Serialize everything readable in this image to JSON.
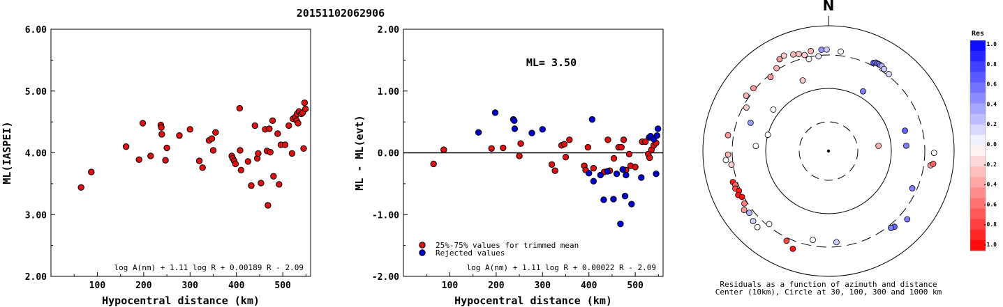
{
  "event_id": "20151102062906",
  "chart_data": [
    {
      "type": "scatter",
      "xlabel": "Hypocentral distance (km)",
      "ylabel": "ML(IASPEI)",
      "xlim": [
        0,
        560
      ],
      "ylim": [
        2.0,
        6.0
      ],
      "xticks": [
        100,
        200,
        300,
        400,
        500
      ],
      "yticks": [
        2.0,
        3.0,
        4.0,
        5.0,
        6.0
      ],
      "ytick_labels": [
        "2.00",
        "3.00",
        "4.00",
        "5.00",
        "6.00"
      ],
      "formula": "log A(nm) + 1.11 log R + 0.00189 R - 2.09",
      "series": [
        {
          "color": "#dd1111",
          "points": [
            [
              65,
              3.44
            ],
            [
              87,
              3.69
            ],
            [
              162,
              4.1
            ],
            [
              190,
              3.89
            ],
            [
              198,
              4.48
            ],
            [
              215,
              3.95
            ],
            [
              237,
              4.45
            ],
            [
              238,
              4.41
            ],
            [
              239,
              4.3
            ],
            [
              247,
              3.88
            ],
            [
              250,
              4.08
            ],
            [
              277,
              4.28
            ],
            [
              300,
              4.38
            ],
            [
              320,
              3.87
            ],
            [
              327,
              3.76
            ],
            [
              341,
              4.2
            ],
            [
              347,
              4.23
            ],
            [
              350,
              4.04
            ],
            [
              355,
              4.33
            ],
            [
              390,
              3.95
            ],
            [
              392,
              3.91
            ],
            [
              395,
              3.87
            ],
            [
              398,
              3.82
            ],
            [
              407,
              4.72
            ],
            [
              408,
              4.04
            ],
            [
              410,
              3.72
            ],
            [
              425,
              3.86
            ],
            [
              432,
              3.47
            ],
            [
              440,
              4.44
            ],
            [
              445,
              3.91
            ],
            [
              447,
              3.99
            ],
            [
              453,
              3.51
            ],
            [
              462,
              4.38
            ],
            [
              466,
              4.03
            ],
            [
              468,
              3.15
            ],
            [
              471,
              4.39
            ],
            [
              473,
              4.01
            ],
            [
              478,
              4.52
            ],
            [
              480,
              3.62
            ],
            [
              489,
              4.31
            ],
            [
              492,
              3.49
            ],
            [
              496,
              4.13
            ],
            [
              505,
              4.13
            ],
            [
              513,
              4.44
            ],
            [
              520,
              3.99
            ],
            [
              522,
              4.55
            ],
            [
              527,
              4.58
            ],
            [
              530,
              4.52
            ],
            [
              531,
              4.63
            ],
            [
              533,
              4.48
            ],
            [
              535,
              4.67
            ],
            [
              540,
              4.63
            ],
            [
              543,
              4.65
            ],
            [
              545,
              4.07
            ],
            [
              547,
              4.81
            ],
            [
              549,
              4.71
            ]
          ]
        }
      ]
    },
    {
      "type": "scatter",
      "xlabel": "Hypocentral distance (km)",
      "ylabel": "ML - ML(evt)",
      "xlim": [
        0,
        560
      ],
      "ylim": [
        -2.0,
        2.0
      ],
      "xticks": [
        100,
        200,
        300,
        400,
        500
      ],
      "yticks": [
        -2.0,
        -1.0,
        0.0,
        1.0,
        2.0
      ],
      "ytick_labels": [
        "-2.00",
        "-1.00",
        "0.00",
        "1.00",
        "2.00"
      ],
      "ml_label": "ML= 3.50",
      "formula": "log A(nm) + 1.11 log R + 0.00022 R - 2.09",
      "legend": [
        "25%-75% values for trimmed mean",
        "Rejected values"
      ],
      "series": [
        {
          "name": "25%-75% values for trimmed mean",
          "color": "#dd1111",
          "points": [
            [
              65,
              -0.18
            ],
            [
              87,
              0.05
            ],
            [
              190,
              0.07
            ],
            [
              215,
              0.08
            ],
            [
              250,
              -0.05
            ],
            [
              253,
              0.15
            ],
            [
              320,
              -0.19
            ],
            [
              327,
              -0.29
            ],
            [
              341,
              0.12
            ],
            [
              347,
              0.14
            ],
            [
              350,
              -0.07
            ],
            [
              358,
              0.21
            ],
            [
              390,
              -0.21
            ],
            [
              393,
              -0.28
            ],
            [
              398,
              0.09
            ],
            [
              410,
              -0.25
            ],
            [
              433,
              -0.31
            ],
            [
              441,
              0.21
            ],
            [
              445,
              -0.29
            ],
            [
              454,
              -0.09
            ],
            [
              464,
              0.09
            ],
            [
              470,
              0.09
            ],
            [
              475,
              0.21
            ],
            [
              480,
              -0.28
            ],
            [
              487,
              -0.02
            ],
            [
              490,
              -0.21
            ],
            [
              500,
              -0.23
            ],
            [
              515,
              0.18
            ],
            [
              522,
              0.18
            ],
            [
              528,
              -0.02
            ],
            [
              531,
              -0.08
            ],
            [
              535,
              0.05
            ],
            [
              540,
              0.12
            ],
            [
              545,
              0.16
            ]
          ]
        },
        {
          "name": "Rejected values",
          "color": "#0000cc",
          "points": [
            [
              162,
              0.33
            ],
            [
              198,
              0.65
            ],
            [
              237,
              0.54
            ],
            [
              239,
              0.52
            ],
            [
              240,
              0.39
            ],
            [
              277,
              0.32
            ],
            [
              300,
              0.38
            ],
            [
              400,
              -0.33
            ],
            [
              407,
              0.54
            ],
            [
              410,
              -0.46
            ],
            [
              425,
              -0.36
            ],
            [
              432,
              -0.76
            ],
            [
              440,
              -0.3
            ],
            [
              453,
              -0.75
            ],
            [
              460,
              -0.34
            ],
            [
              468,
              -1.15
            ],
            [
              473,
              -0.27
            ],
            [
              478,
              -0.7
            ],
            [
              480,
              -0.36
            ],
            [
              492,
              -0.83
            ],
            [
              513,
              -0.4
            ],
            [
              530,
              0.25
            ],
            [
              533,
              0.27
            ],
            [
              540,
              0.22
            ],
            [
              545,
              -0.34
            ],
            [
              547,
              0.28
            ],
            [
              549,
              0.39
            ]
          ]
        }
      ]
    },
    {
      "type": "polar-scatter",
      "north_label": "N",
      "caption": [
        "Residuals as a function of azimuth and distance",
        "Center (10km), Circle at 30, 100, 300 and 1000 km"
      ],
      "colorbar_title": "Res",
      "colorbar_ticks": [
        "1.0",
        "0.8",
        "0.6",
        "0.4",
        "0.2",
        "0.0",
        "-0.2",
        "-0.4",
        "-0.6",
        "-0.8",
        "-1.0"
      ],
      "stations": [
        {
          "az": -32,
          "r": 0.78,
          "res": -0.3
        },
        {
          "az": -28,
          "r": 0.83,
          "res": -0.4
        },
        {
          "az": -25,
          "r": 0.84,
          "res": -0.2
        },
        {
          "az": -20,
          "r": 0.82,
          "res": -0.3
        },
        {
          "az": -17,
          "r": 0.81,
          "res": -0.25
        },
        {
          "az": -14,
          "r": 0.79,
          "res": -0.2
        },
        {
          "az": -10,
          "r": 0.81,
          "res": -0.3
        },
        {
          "az": -12,
          "r": 0.75,
          "res": 0.0
        },
        {
          "az": -6,
          "r": 0.76,
          "res": 0.1
        },
        {
          "az": -4,
          "r": 0.81,
          "res": 0.4
        },
        {
          "az": -1,
          "r": 0.81,
          "res": 0.2
        },
        {
          "az": 7,
          "r": 0.8,
          "res": 0.0
        },
        {
          "az": 27,
          "r": 0.79,
          "res": 0.6
        },
        {
          "az": 28,
          "r": 0.8,
          "res": 0.5
        },
        {
          "az": 29,
          "r": 0.8,
          "res": 0.6
        },
        {
          "az": 30,
          "r": 0.8,
          "res": 0.4
        },
        {
          "az": 31,
          "r": 0.8,
          "res": 0.5
        },
        {
          "az": 32,
          "r": 0.8,
          "res": 0.3
        },
        {
          "az": 34,
          "r": 0.79,
          "res": 0.2
        },
        {
          "az": 38,
          "r": 0.78,
          "res": 0.15
        },
        {
          "az": 30,
          "r": 0.55,
          "res": 0.5
        },
        {
          "az": -20,
          "r": 0.6,
          "res": -0.2
        },
        {
          "az": -38,
          "r": 0.75,
          "res": -0.4
        },
        {
          "az": -50,
          "r": 0.78,
          "res": -0.4
        },
        {
          "az": -56,
          "r": 0.79,
          "res": -0.3
        },
        {
          "az": -62,
          "r": 0.74,
          "res": -0.2
        },
        {
          "az": -53,
          "r": 0.55,
          "res": 0.0
        },
        {
          "az": -70,
          "r": 0.66,
          "res": 0.4
        },
        {
          "az": -81,
          "r": 0.81,
          "res": -0.4
        },
        {
          "az": -86,
          "r": 0.58,
          "res": 0.0
        },
        {
          "az": -92,
          "r": 0.8,
          "res": -0.3
        },
        {
          "az": -98,
          "r": 0.78,
          "res": -0.2
        },
        {
          "az": -95,
          "r": 0.82,
          "res": 0.0
        },
        {
          "az": -108,
          "r": 0.8,
          "res": -0.85
        },
        {
          "az": -110,
          "r": 0.79,
          "res": -0.6
        },
        {
          "az": -112,
          "r": 0.8,
          "res": -0.7
        },
        {
          "az": -114,
          "r": 0.78,
          "res": -0.9
        },
        {
          "az": -116,
          "r": 0.8,
          "res": -0.9
        },
        {
          "az": -118,
          "r": 0.78,
          "res": -0.95
        },
        {
          "az": -122,
          "r": 0.79,
          "res": -0.5
        },
        {
          "az": -125,
          "r": 0.82,
          "res": -0.4
        },
        {
          "az": -128,
          "r": 0.8,
          "res": 0.3
        },
        {
          "az": -133,
          "r": 0.82,
          "res": 0.2
        },
        {
          "az": -137,
          "r": 0.83,
          "res": 0.0
        },
        {
          "az": -141,
          "r": 0.75,
          "res": 0.0
        },
        {
          "az": -155,
          "r": 0.79,
          "res": -0.7
        },
        {
          "az": -170,
          "r": 0.72,
          "res": 0.0
        },
        {
          "az": 175,
          "r": 0.73,
          "res": 0.2
        },
        {
          "az": -160,
          "r": 0.83,
          "res": -0.9
        },
        {
          "az": 139,
          "r": 0.8,
          "res": 0.6
        },
        {
          "az": 141,
          "r": 0.79,
          "res": 0.5
        },
        {
          "az": 131,
          "r": 0.83,
          "res": 0.5
        },
        {
          "az": 114,
          "r": 0.73,
          "res": 0.5
        },
        {
          "az": 98,
          "r": 0.82,
          "res": -0.4
        },
        {
          "az": 97,
          "r": 0.84,
          "res": -0.6
        },
        {
          "az": 91,
          "r": 0.84,
          "res": 0.0
        },
        {
          "az": 75,
          "r": 0.63,
          "res": 0.6
        },
        {
          "az": 86,
          "r": 0.62,
          "res": 0.5
        },
        {
          "az": 84,
          "r": 0.4,
          "res": -0.3
        },
        {
          "az": -75,
          "r": 0.5,
          "res": 0.0
        }
      ]
    }
  ]
}
